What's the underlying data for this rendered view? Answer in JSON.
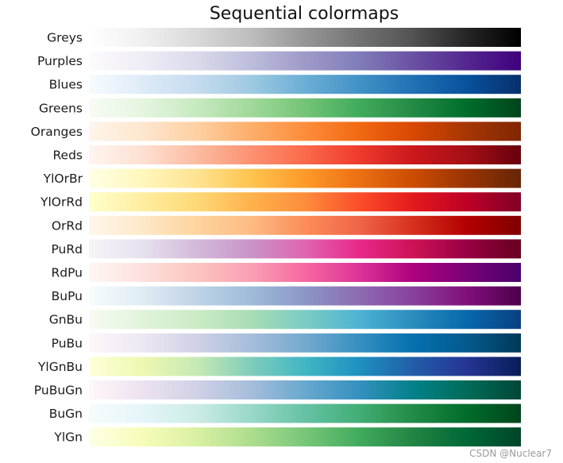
{
  "watermark": "CSDN @Nuclear7",
  "chart_data": {
    "type": "heatmap",
    "title": "Sequential colormaps",
    "xlabel": "",
    "ylabel": "",
    "grid": false,
    "legend": "none",
    "xlim": [
      0,
      1
    ],
    "colormaps": [
      {
        "name": "Greys",
        "colors": [
          "#ffffff",
          "#f0f0f0",
          "#d9d9d9",
          "#bdbdbd",
          "#969696",
          "#737373",
          "#525252",
          "#252525",
          "#000000"
        ]
      },
      {
        "name": "Purples",
        "colors": [
          "#fcfbfd",
          "#efedf5",
          "#dadaeb",
          "#bcbddc",
          "#9e9ac8",
          "#807dba",
          "#6a51a3",
          "#54278f",
          "#3f007d"
        ]
      },
      {
        "name": "Blues",
        "colors": [
          "#f7fbff",
          "#deebf7",
          "#c6dbef",
          "#9ecae1",
          "#6baed6",
          "#4292c6",
          "#2171b5",
          "#08519c",
          "#08306b"
        ]
      },
      {
        "name": "Greens",
        "colors": [
          "#f7fcf5",
          "#e5f5e0",
          "#c7e9c0",
          "#a1d99b",
          "#74c476",
          "#41ab5d",
          "#238b45",
          "#006d2c",
          "#00441b"
        ]
      },
      {
        "name": "Oranges",
        "colors": [
          "#fff5eb",
          "#fee6ce",
          "#fdd0a2",
          "#fdae6b",
          "#fd8d3c",
          "#f16913",
          "#d94801",
          "#a63603",
          "#7f2704"
        ]
      },
      {
        "name": "Reds",
        "colors": [
          "#fff5f0",
          "#fee0d2",
          "#fcbba1",
          "#fc9272",
          "#fb6a4a",
          "#ef3b2c",
          "#cb181d",
          "#a50f15",
          "#67000d"
        ]
      },
      {
        "name": "YlOrBr",
        "colors": [
          "#ffffe5",
          "#fff7bc",
          "#fee391",
          "#fec44f",
          "#fe9929",
          "#ec7014",
          "#cc4c02",
          "#993404",
          "#662506"
        ]
      },
      {
        "name": "YlOrRd",
        "colors": [
          "#ffffcc",
          "#ffeda0",
          "#fed976",
          "#feb24c",
          "#fd8d3c",
          "#fc4e2a",
          "#e31a1c",
          "#bd0026",
          "#800026"
        ]
      },
      {
        "name": "OrRd",
        "colors": [
          "#fff7ec",
          "#fee8c8",
          "#fdd49e",
          "#fdbb84",
          "#fc8d59",
          "#ef6548",
          "#d7301f",
          "#b30000",
          "#7f0000"
        ]
      },
      {
        "name": "PuRd",
        "colors": [
          "#f7f4f9",
          "#e7e1ef",
          "#d4b9da",
          "#c994c7",
          "#df65b0",
          "#e7298a",
          "#ce1256",
          "#980043",
          "#67001f"
        ]
      },
      {
        "name": "RdPu",
        "colors": [
          "#fff7f3",
          "#fde0dd",
          "#fcc5c0",
          "#fa9fb5",
          "#f768a1",
          "#dd3497",
          "#ae017e",
          "#7a0177",
          "#49006a"
        ]
      },
      {
        "name": "BuPu",
        "colors": [
          "#f7fcfd",
          "#e0ecf4",
          "#bfd3e6",
          "#9ebcda",
          "#8c96c6",
          "#8c6bb1",
          "#88419d",
          "#810f7c",
          "#4d004b"
        ]
      },
      {
        "name": "GnBu",
        "colors": [
          "#f7fcf0",
          "#e0f3db",
          "#ccebc5",
          "#a8ddb5",
          "#7bccc4",
          "#4eb3d3",
          "#2b8cbe",
          "#0868ac",
          "#084081"
        ]
      },
      {
        "name": "PuBu",
        "colors": [
          "#fff7fb",
          "#ece7f2",
          "#d0d1e6",
          "#a6bddb",
          "#74a9cf",
          "#3690c0",
          "#0570b0",
          "#045a8d",
          "#023858"
        ]
      },
      {
        "name": "YlGnBu",
        "colors": [
          "#ffffd9",
          "#edf8b1",
          "#c7e9b4",
          "#7fcdbb",
          "#41b6c4",
          "#1d91c0",
          "#225ea8",
          "#253494",
          "#081d58"
        ]
      },
      {
        "name": "PuBuGn",
        "colors": [
          "#fff7fb",
          "#ece2f0",
          "#d0d1e6",
          "#a6bddb",
          "#67a9cf",
          "#3690c0",
          "#02818a",
          "#016c59",
          "#014636"
        ]
      },
      {
        "name": "BuGn",
        "colors": [
          "#f7fcfd",
          "#e5f5f9",
          "#ccece6",
          "#99d8c9",
          "#66c2a4",
          "#41ae76",
          "#238b45",
          "#006d2c",
          "#00441b"
        ]
      },
      {
        "name": "YlGn",
        "colors": [
          "#ffffe5",
          "#f7fcb9",
          "#d9f0a3",
          "#addd8e",
          "#78c679",
          "#41ab5d",
          "#238443",
          "#006837",
          "#004529"
        ]
      }
    ]
  }
}
